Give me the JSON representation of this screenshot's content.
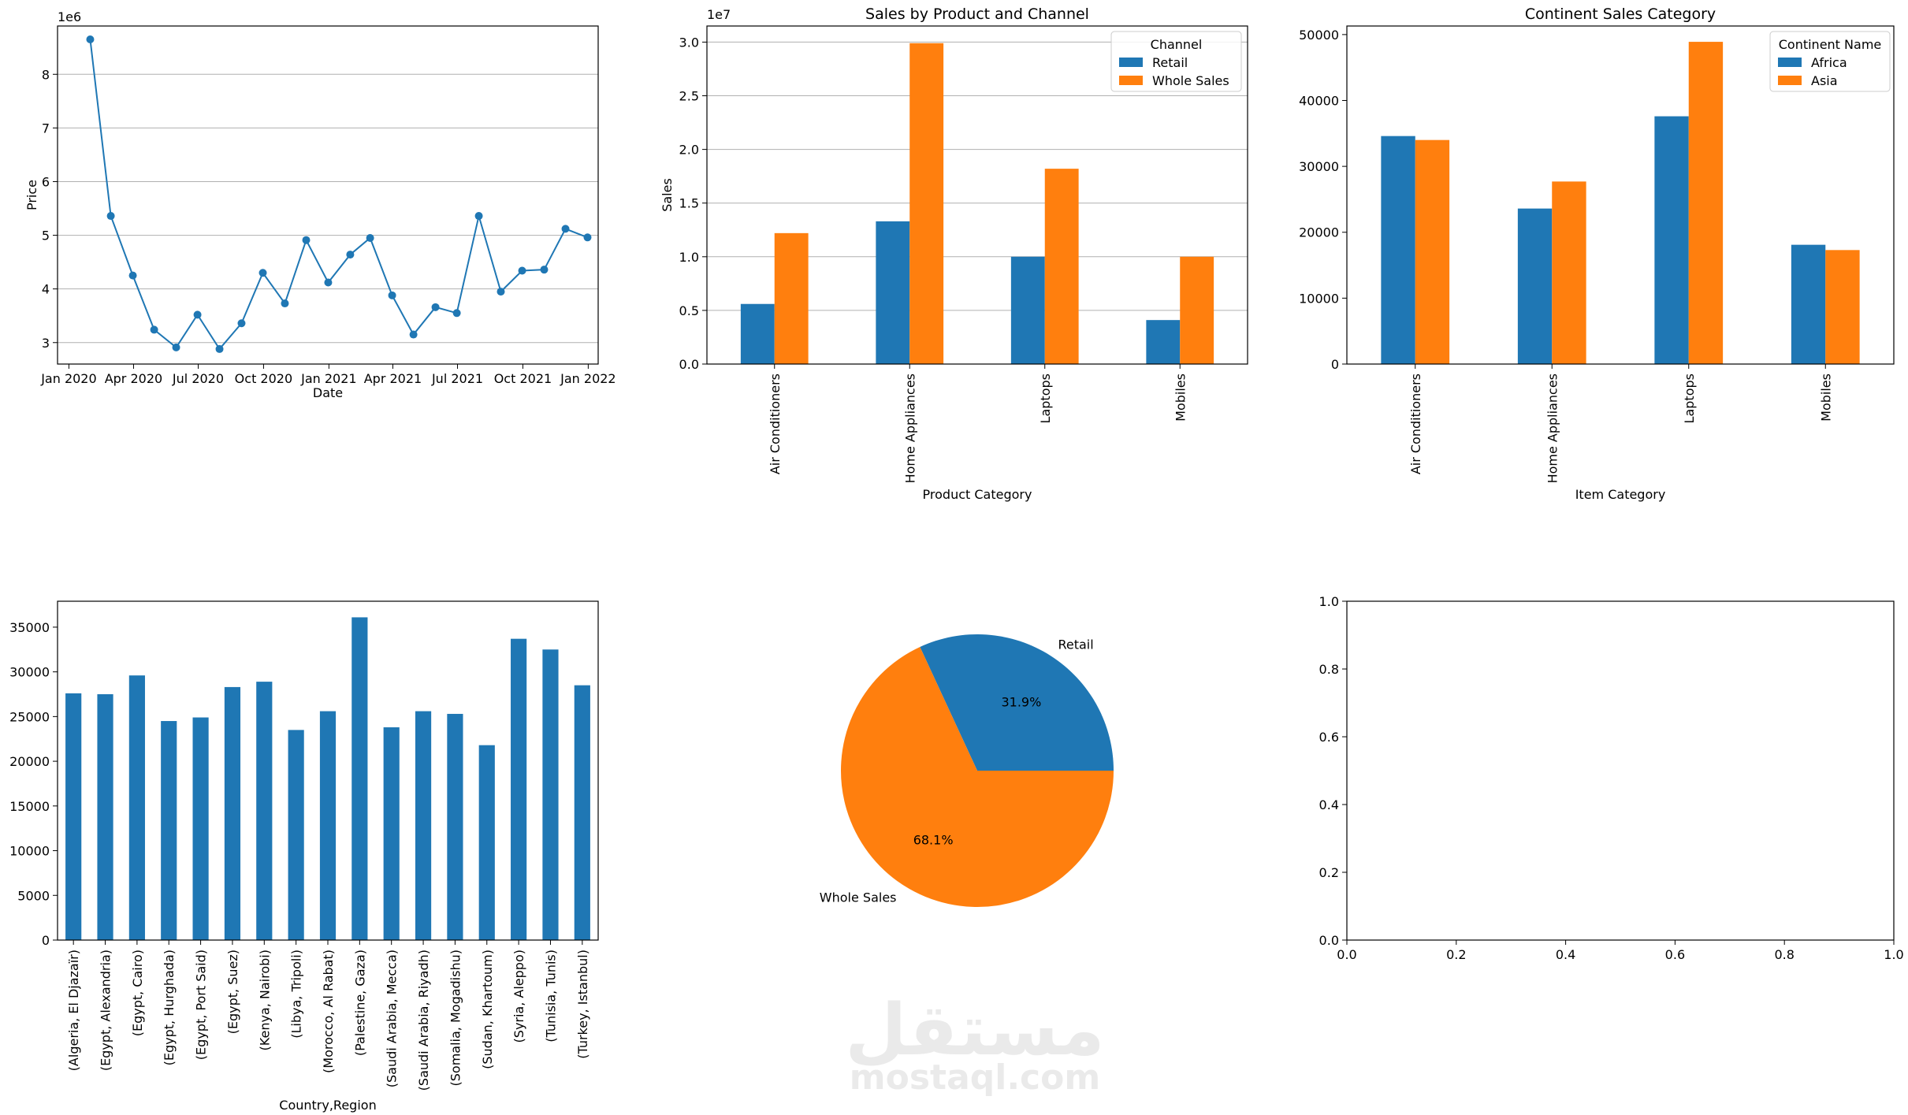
{
  "colors": {
    "blue": "#1f77b4",
    "orange": "#ff7f0e",
    "grid": "#b0b0b0"
  },
  "watermark": {
    "arabic": "مستقل",
    "latin": "mostaql.com"
  },
  "chart_data": [
    {
      "type": "line",
      "title": "",
      "xlabel": "Date",
      "ylabel": "Price",
      "offset_label": "1e6",
      "x": [
        "2020-01-31",
        "2020-02-29",
        "2020-03-31",
        "2020-04-30",
        "2020-05-31",
        "2020-06-30",
        "2020-07-31",
        "2020-08-31",
        "2020-09-30",
        "2020-10-31",
        "2020-11-30",
        "2020-12-31",
        "2021-01-31",
        "2021-02-28",
        "2021-03-31",
        "2021-04-30",
        "2021-05-31",
        "2021-06-30",
        "2021-07-31",
        "2021-08-31",
        "2021-09-30",
        "2021-10-31",
        "2021-11-30",
        "2021-12-31"
      ],
      "y": [
        8.65,
        5.36,
        4.25,
        3.24,
        2.91,
        3.52,
        2.88,
        3.36,
        4.3,
        3.73,
        4.91,
        4.12,
        4.64,
        4.95,
        3.88,
        3.15,
        3.66,
        3.55,
        5.36,
        3.95,
        4.34,
        4.36,
        5.12,
        4.96
      ],
      "xlim": [
        "2019-12-16",
        "2022-01-15"
      ],
      "ylim": [
        2.6,
        8.9
      ],
      "xticks": [
        {
          "date": "2020-01-01",
          "label": "Jan 2020"
        },
        {
          "date": "2020-04-01",
          "label": "Apr 2020"
        },
        {
          "date": "2020-07-01",
          "label": "Jul 2020"
        },
        {
          "date": "2020-10-01",
          "label": "Oct 2020"
        },
        {
          "date": "2021-01-01",
          "label": "Jan 2021"
        },
        {
          "date": "2021-04-01",
          "label": "Apr 2021"
        },
        {
          "date": "2021-07-01",
          "label": "Jul 2021"
        },
        {
          "date": "2021-10-01",
          "label": "Oct 2021"
        },
        {
          "date": "2022-01-01",
          "label": "Jan 2022"
        }
      ],
      "yticks": [
        3,
        4,
        5,
        6,
        7,
        8
      ],
      "grid": "y"
    },
    {
      "type": "bar",
      "title": "Sales by Product and Channel",
      "xlabel": "Product Category",
      "ylabel": "Sales",
      "offset_label": "1e7",
      "categories": [
        "Air Conditioners",
        "Home Appliances",
        "Laptops",
        "Mobiles"
      ],
      "series": [
        {
          "name": "Retail",
          "values": [
            0.56,
            1.33,
            1.0,
            0.41
          ]
        },
        {
          "name": "Whole Sales",
          "values": [
            1.22,
            2.99,
            1.82,
            1.0
          ]
        }
      ],
      "ylim": [
        0,
        3.15
      ],
      "yticks": [
        0.0,
        0.5,
        1.0,
        1.5,
        2.0,
        2.5,
        3.0
      ],
      "legend_title": "Channel",
      "legend_position": "top-right",
      "grid": "y"
    },
    {
      "type": "bar",
      "title": "Continent Sales Category",
      "xlabel": "Item Category",
      "ylabel": "",
      "categories": [
        "Air Conditioners",
        "Home Appliances",
        "Laptops",
        "Mobiles"
      ],
      "series": [
        {
          "name": "Africa",
          "values": [
            34600,
            23600,
            37600,
            18100
          ]
        },
        {
          "name": "Asia",
          "values": [
            34000,
            27700,
            48900,
            17300
          ]
        }
      ],
      "ylim": [
        0,
        51300
      ],
      "yticks": [
        0,
        10000,
        20000,
        30000,
        40000,
        50000
      ],
      "legend_title": "Continent Name",
      "legend_position": "top-right",
      "grid": "none"
    },
    {
      "type": "bar",
      "title": "",
      "xlabel": "Country,Region",
      "ylabel": "",
      "categories": [
        "(Algeria, El Djazaïr)",
        "(Egypt, Alexandria)",
        "(Egypt, Cairo)",
        "(Egypt, Hurghada)",
        "(Egypt, Port Said)",
        "(Egypt, Suez)",
        "(Kenya, Nairobi)",
        "(Libya, Tripoli)",
        "(Morocco, Al Rabat)",
        "(Palestine, Gaza)",
        "(Saudi Arabia, Mecca)",
        "(Saudi Arabia, Riyadh)",
        "(Somalia, Mogadishu)",
        "(Sudan, Khartoum)",
        "(Syria, Aleppo)",
        "(Tunisia, Tunis)",
        "(Turkey, Istanbul)"
      ],
      "values": [
        27600,
        27500,
        29600,
        24500,
        24900,
        28300,
        28900,
        23500,
        25600,
        36100,
        23800,
        25600,
        25300,
        21800,
        33700,
        32500,
        28500
      ],
      "ylim": [
        0,
        37900
      ],
      "yticks": [
        0,
        5000,
        10000,
        15000,
        20000,
        25000,
        30000,
        35000
      ],
      "grid": "none"
    },
    {
      "type": "pie",
      "title": "",
      "labels": [
        "Retail",
        "Whole Sales"
      ],
      "values": [
        31.9,
        68.1
      ],
      "autopct": [
        "31.9%",
        "68.1%"
      ]
    },
    {
      "type": "scatter",
      "title": "",
      "xlim": [
        0,
        1
      ],
      "ylim": [
        0,
        1
      ],
      "xticks": [
        "0.0",
        "0.2",
        "0.4",
        "0.6",
        "0.8",
        "1.0"
      ],
      "yticks": [
        "0.0",
        "0.2",
        "0.4",
        "0.6",
        "0.8",
        "1.0"
      ],
      "empty": true
    }
  ]
}
